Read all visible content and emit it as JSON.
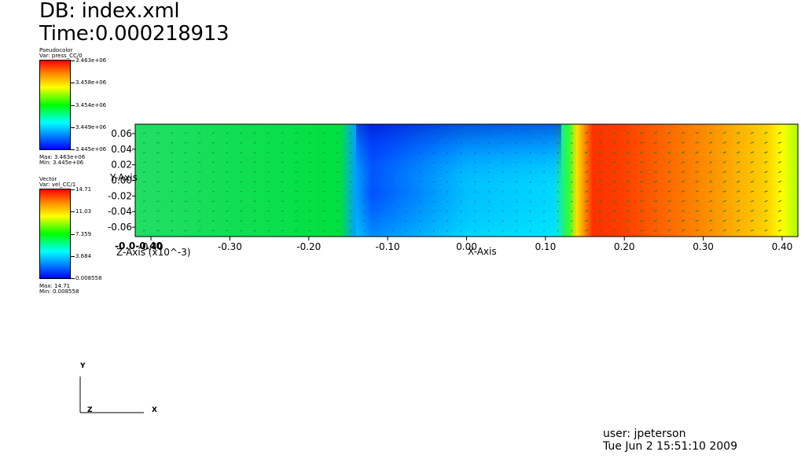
{
  "header": {
    "db_line": "DB: index.xml",
    "time_line": "Time:0.000218913"
  },
  "legend_pseudocolor": {
    "plot_type": "Pseudocolor",
    "var_line": "Var: press_CC/0",
    "ticks": [
      "3.463e+06",
      "3.458e+06",
      "3.454e+06",
      "3.449e+06",
      "3.445e+06"
    ],
    "max_line": "Max:  3.463e+06",
    "min_line": "Min:  3.445e+06"
  },
  "legend_vector": {
    "plot_type": "Vector",
    "var_line": "Var: vel_CC/1",
    "ticks": [
      "14.71",
      "11.03",
      "7.359",
      "3.684",
      "0.008558"
    ],
    "max_line": "Max:  14.71",
    "min_line": "Min:  0.008558"
  },
  "chart_data": {
    "type": "heatmap",
    "title": "",
    "xlabel": "X-Axis",
    "ylabel": "Y-Axis",
    "zlabel": "Z-Axis (x10^-3)",
    "xlim": [
      -0.42,
      0.42
    ],
    "ylim": [
      -0.072,
      0.072
    ],
    "x_ticks": [
      "-0.40",
      "-0.30",
      "-0.20",
      "-0.10",
      "0.00",
      "0.10",
      "0.20",
      "0.30",
      "0.40"
    ],
    "x_tick_values": [
      -0.4,
      -0.3,
      -0.2,
      -0.1,
      0.0,
      0.1,
      0.2,
      0.3,
      0.4
    ],
    "y_ticks": [
      "0.06",
      "0.04",
      "0.02",
      "0.00",
      "-0.02",
      "-0.04",
      "-0.06"
    ],
    "y_tick_values": [
      0.06,
      0.04,
      0.02,
      0.0,
      -0.02,
      -0.04,
      -0.06
    ],
    "z_tick_overlap": "-0.0-0.40",
    "color_profile_along_x": [
      {
        "x": -0.42,
        "color": "#22dd66"
      },
      {
        "x": -0.16,
        "color": "#00e040"
      },
      {
        "x": -0.14,
        "color": "#00a0ff"
      },
      {
        "x": -0.12,
        "color": "#0050ff"
      },
      {
        "x": 0.0,
        "color": "#00c0ff"
      },
      {
        "x": 0.11,
        "color": "#00d8ff"
      },
      {
        "x": 0.13,
        "color": "#30ff30"
      },
      {
        "x": 0.14,
        "color": "#ffe000"
      },
      {
        "x": 0.16,
        "color": "#ff3000"
      },
      {
        "x": 0.2,
        "color": "#ff4000"
      },
      {
        "x": 0.3,
        "color": "#ff8a00"
      },
      {
        "x": 0.38,
        "color": "#ffd000"
      },
      {
        "x": 0.4,
        "color": "#ffff00"
      },
      {
        "x": 0.42,
        "color": "#aaff00"
      }
    ]
  },
  "triad": {
    "x": "X",
    "y": "Y",
    "z": "Z"
  },
  "footer": {
    "user_line": "user: jpeterson",
    "date_line": "Tue Jun  2 15:51:10 2009"
  }
}
